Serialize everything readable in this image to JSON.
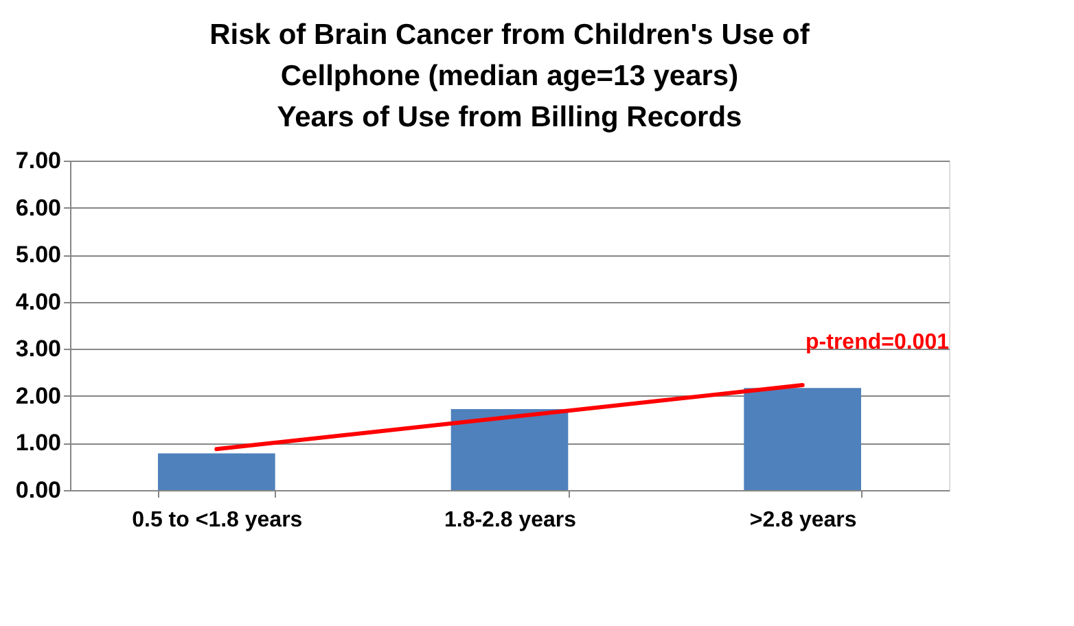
{
  "chart_data": {
    "type": "bar",
    "title": [
      "Risk  of Brain Cancer  from Children's Use of",
      "Cellphone (median age=13 years)",
      "Years of Use from Billing Records"
    ],
    "categories": [
      "0.5 to  <1.8 years",
      "1.8-2.8 years",
      ">2.8 years"
    ],
    "series": [
      {
        "color": "#4f81bd",
        "values": [
          0.78,
          1.72,
          2.17
        ]
      },
      {
        "type": "line",
        "color": "#ff0000",
        "x": [
          "0.5 to  <1.8 years",
          ">2.8 years"
        ],
        "values": [
          0.87,
          2.23
        ]
      }
    ],
    "annotations": [
      "p-trend=0.001"
    ],
    "ylim": [
      0,
      7
    ],
    "yticks": [
      {
        "value": 0,
        "label": "0.00"
      },
      {
        "value": 1,
        "label": "1.00"
      },
      {
        "value": 2,
        "label": "2.00"
      },
      {
        "value": 3,
        "label": "3.00"
      },
      {
        "value": 4,
        "label": "4.00"
      },
      {
        "value": 5,
        "label": "5.00"
      },
      {
        "value": 6,
        "label": "6.00"
      },
      {
        "value": 7,
        "label": "7.00"
      }
    ],
    "grid": "y"
  }
}
